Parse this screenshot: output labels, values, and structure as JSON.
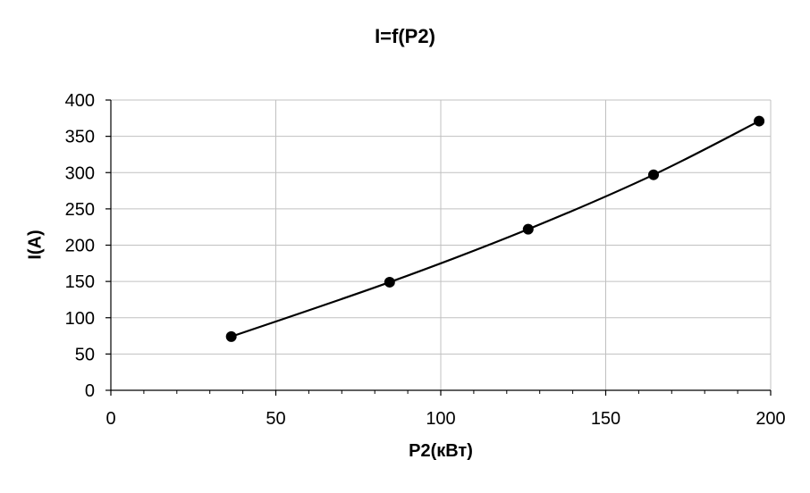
{
  "chart_data": {
    "type": "line",
    "title": "I=f(P2)",
    "xlabel": "P2(кВт)",
    "ylabel": "I(A)",
    "xlim": [
      0,
      200
    ],
    "ylim": [
      0,
      400
    ],
    "x_ticks": [
      0,
      50,
      100,
      150,
      200
    ],
    "y_ticks": [
      0,
      50,
      100,
      150,
      200,
      250,
      300,
      350,
      400
    ],
    "grid": true,
    "series": [
      {
        "x": [
          36.5,
          84.5,
          126.5,
          164.5,
          196.5
        ],
        "y": [
          74,
          149,
          222,
          297,
          371
        ]
      }
    ],
    "colors": {
      "line": "#000000",
      "grid": "#c0c0c0",
      "axis": "#000000"
    }
  }
}
